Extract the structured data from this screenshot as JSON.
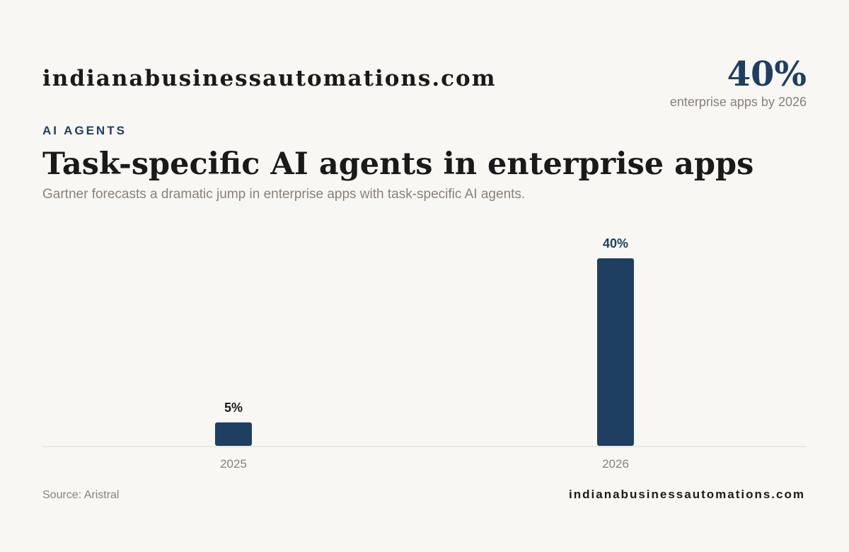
{
  "brand": "indianabusinessautomations.com",
  "highlight": {
    "value": "40%",
    "caption": "enterprise apps by 2026"
  },
  "kicker": "AI AGENTS",
  "chart_data": {
    "type": "bar",
    "title": "Task-specific AI agents in enterprise apps",
    "subtitle": "Gartner forecasts a dramatic jump in enterprise apps with task-specific AI agents.",
    "categories": [
      "2025",
      "2026"
    ],
    "values": [
      5,
      40
    ],
    "value_labels": [
      "5%",
      "40%"
    ],
    "color": "#1f3f62"
  },
  "footer": {
    "source": "Source: Aristral",
    "site": "indianabusinessautomations.com"
  }
}
